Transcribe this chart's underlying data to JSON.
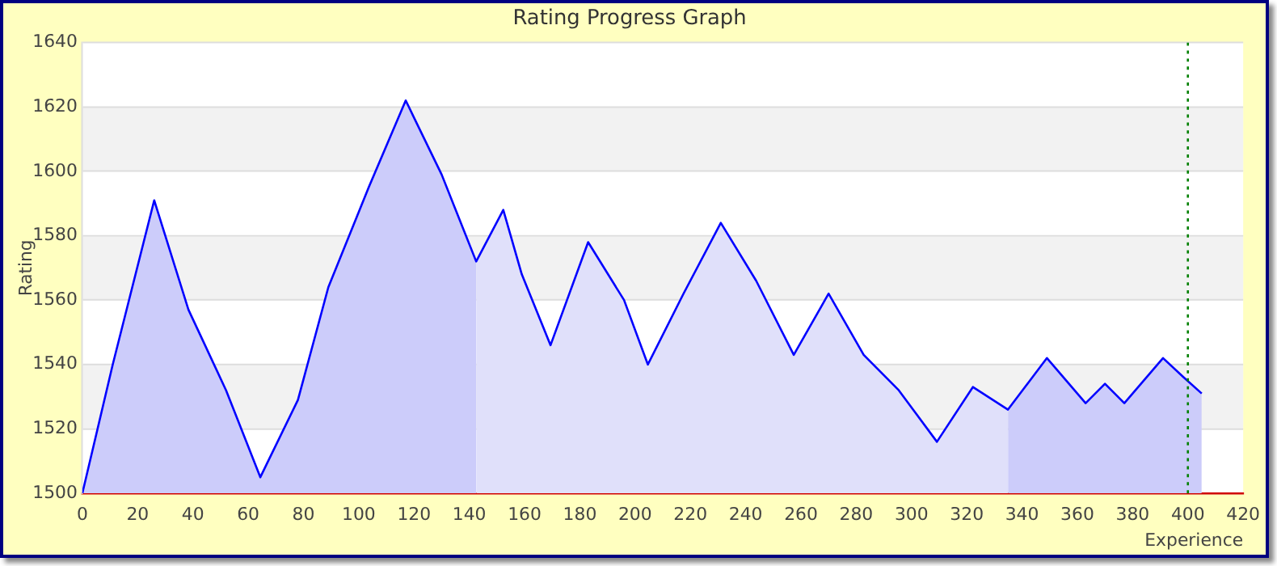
{
  "chart_data": {
    "type": "area",
    "title": "Rating Progress Graph",
    "xlabel": "Experience",
    "ylabel": "Rating",
    "series": [
      {
        "color": "#ccccfa",
        "x": [
          0,
          11,
          26,
          38.4,
          52,
          64.4,
          78,
          89,
          103.6,
          117,
          130,
          142.5
        ],
        "values": [
          1500,
          1540,
          1591,
          1557,
          1532,
          1505,
          1529,
          1564,
          1595,
          1622,
          1599,
          1572
        ]
      },
      {
        "color": "#e0e0fa",
        "x": [
          142.5,
          152.3,
          159,
          169.4,
          183,
          196,
          204.6,
          217.5,
          231,
          243.8,
          257.4,
          270,
          282.7,
          295.4,
          309.2,
          322.2,
          334.9
        ],
        "values": [
          1572,
          1588,
          1568,
          1546,
          1578,
          1560,
          1540,
          1562,
          1584,
          1566,
          1543,
          1562,
          1543,
          1532,
          1516,
          1533,
          1526
        ]
      },
      {
        "color": "#ccccfa",
        "x": [
          334.9,
          349,
          363,
          370,
          377,
          391,
          398.5,
          405
        ],
        "values": [
          1526,
          1542,
          1528,
          1534,
          1528,
          1542,
          1536,
          1531
        ]
      },
      {
        "type": "line",
        "color": "#0000ff",
        "x": [
          0,
          11,
          26,
          38.4,
          52,
          64.4,
          78,
          89,
          103.6,
          117,
          130,
          142.5,
          152.3,
          159,
          169.4,
          183,
          196,
          204.6,
          217.5,
          231,
          243.8,
          257.4,
          270,
          282.7,
          295.4,
          309.2,
          322.2,
          334.9,
          349,
          363,
          370,
          377,
          391,
          398.5,
          405
        ],
        "values": [
          1500,
          1540,
          1591,
          1557,
          1532,
          1505,
          1529,
          1564,
          1595,
          1622,
          1599,
          1572,
          1588,
          1568,
          1546,
          1578,
          1560,
          1540,
          1562,
          1584,
          1566,
          1543,
          1562,
          1543,
          1532,
          1516,
          1533,
          1526,
          1542,
          1528,
          1534,
          1528,
          1542,
          1536,
          1531
        ]
      }
    ],
    "xlim": [
      0,
      420
    ],
    "xticks": [
      0,
      20,
      40,
      60,
      80,
      100,
      120,
      140,
      160,
      180,
      200,
      220,
      240,
      260,
      280,
      300,
      320,
      340,
      360,
      380,
      400,
      420
    ],
    "ylim": [
      1500,
      1640
    ],
    "yticks": [
      1500,
      1520,
      1540,
      1560,
      1580,
      1600,
      1620,
      1640
    ],
    "grid": "y",
    "legend": false,
    "marker": "none",
    "line_style": "solid",
    "ref_lines": [
      {
        "axis": "x",
        "value": 400,
        "color": "#008000",
        "line_style": "dotted"
      }
    ]
  }
}
